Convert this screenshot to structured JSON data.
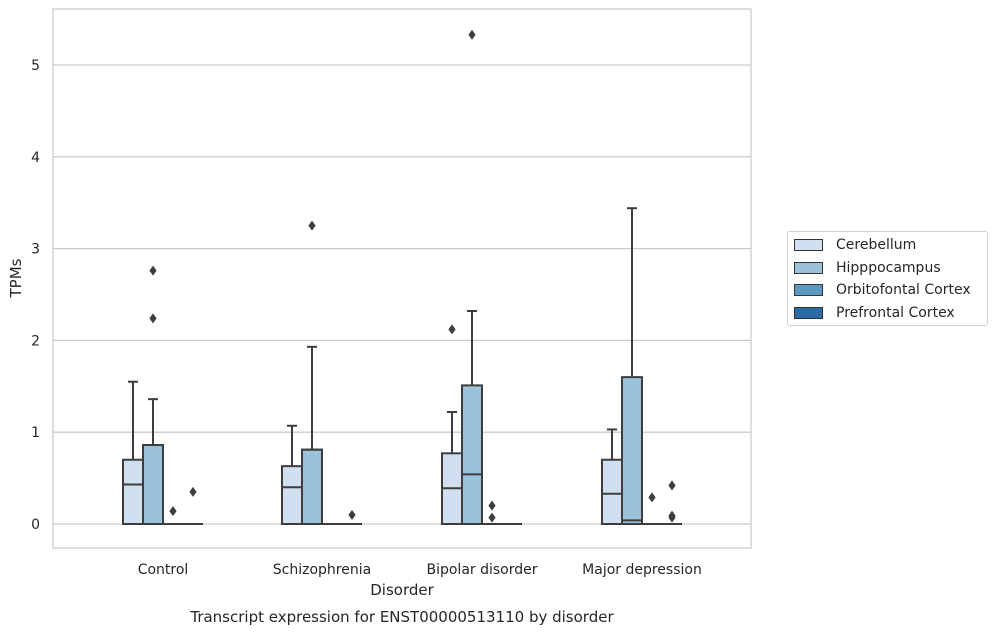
{
  "chart_data": {
    "type": "boxplot",
    "title": "Transcript expression for ENST00000513110 by disorder",
    "xlabel": "Disorder",
    "ylabel": "TPMs",
    "ylim": [
      -0.26,
      5.6
    ],
    "yticks": [
      0,
      1,
      2,
      3,
      4,
      5
    ],
    "grid": true,
    "legend_position": "right",
    "categories": [
      "Control",
      "Schizophrenia",
      "Bipolar disorder",
      "Major depression"
    ],
    "series": [
      {
        "name": "Cerebellum",
        "color": "#d0e0f0",
        "boxes": [
          {
            "whislo": 0,
            "q1": 0,
            "med": 0.43,
            "q3": 0.7,
            "whishi": 1.55,
            "fliers": []
          },
          {
            "whislo": 0,
            "q1": 0,
            "med": 0.4,
            "q3": 0.63,
            "whishi": 1.07,
            "fliers": []
          },
          {
            "whislo": 0,
            "q1": 0,
            "med": 0.39,
            "q3": 0.77,
            "whishi": 1.22,
            "fliers": [
              2.12
            ]
          },
          {
            "whislo": 0,
            "q1": 0,
            "med": 0.33,
            "q3": 0.7,
            "whishi": 1.03,
            "fliers": []
          }
        ]
      },
      {
        "name": "Hipppocampus",
        "color": "#9cc2da",
        "boxes": [
          {
            "whislo": 0,
            "q1": 0,
            "med": 0.86,
            "q3": 0.86,
            "whishi": 1.36,
            "fliers": [
              2.24,
              2.76
            ]
          },
          {
            "whislo": 0,
            "q1": 0,
            "med": 0.81,
            "q3": 0.81,
            "whishi": 1.93,
            "fliers": [
              3.25
            ]
          },
          {
            "whislo": 0,
            "q1": 0,
            "med": 0.54,
            "q3": 1.51,
            "whishi": 2.32,
            "fliers": [
              5.33
            ]
          },
          {
            "whislo": 0,
            "q1": 0,
            "med": 0.04,
            "q3": 1.6,
            "whishi": 3.44,
            "fliers": []
          }
        ]
      },
      {
        "name": "Orbitofontal Cortex",
        "color": "#5b98c2",
        "boxes": [
          {
            "whislo": 0,
            "q1": 0,
            "med": 0,
            "q3": 0,
            "whishi": 0,
            "fliers": [
              0.14
            ]
          },
          {
            "whislo": 0,
            "q1": 0,
            "med": 0,
            "q3": 0,
            "whishi": 0,
            "fliers": []
          },
          {
            "whislo": 0,
            "q1": 0,
            "med": 0,
            "q3": 0,
            "whishi": 0,
            "fliers": [
              0.07,
              0.2
            ]
          },
          {
            "whislo": 0,
            "q1": 0,
            "med": 0,
            "q3": 0,
            "whishi": 0,
            "fliers": [
              0.29
            ]
          }
        ]
      },
      {
        "name": "Prefrontal Cortex",
        "color": "#2c6aa6",
        "boxes": [
          {
            "whislo": 0,
            "q1": 0,
            "med": 0,
            "q3": 0,
            "whishi": 0,
            "fliers": [
              0.35
            ]
          },
          {
            "whislo": 0,
            "q1": 0,
            "med": 0,
            "q3": 0,
            "whishi": 0,
            "fliers": [
              0.1
            ]
          },
          {
            "whislo": 0,
            "q1": 0,
            "med": 0,
            "q3": 0,
            "whishi": 0,
            "fliers": []
          },
          {
            "whislo": 0,
            "q1": 0,
            "med": 0,
            "q3": 0,
            "whishi": 0,
            "fliers": [
              0.07,
              0.09,
              0.42
            ]
          }
        ]
      }
    ]
  }
}
